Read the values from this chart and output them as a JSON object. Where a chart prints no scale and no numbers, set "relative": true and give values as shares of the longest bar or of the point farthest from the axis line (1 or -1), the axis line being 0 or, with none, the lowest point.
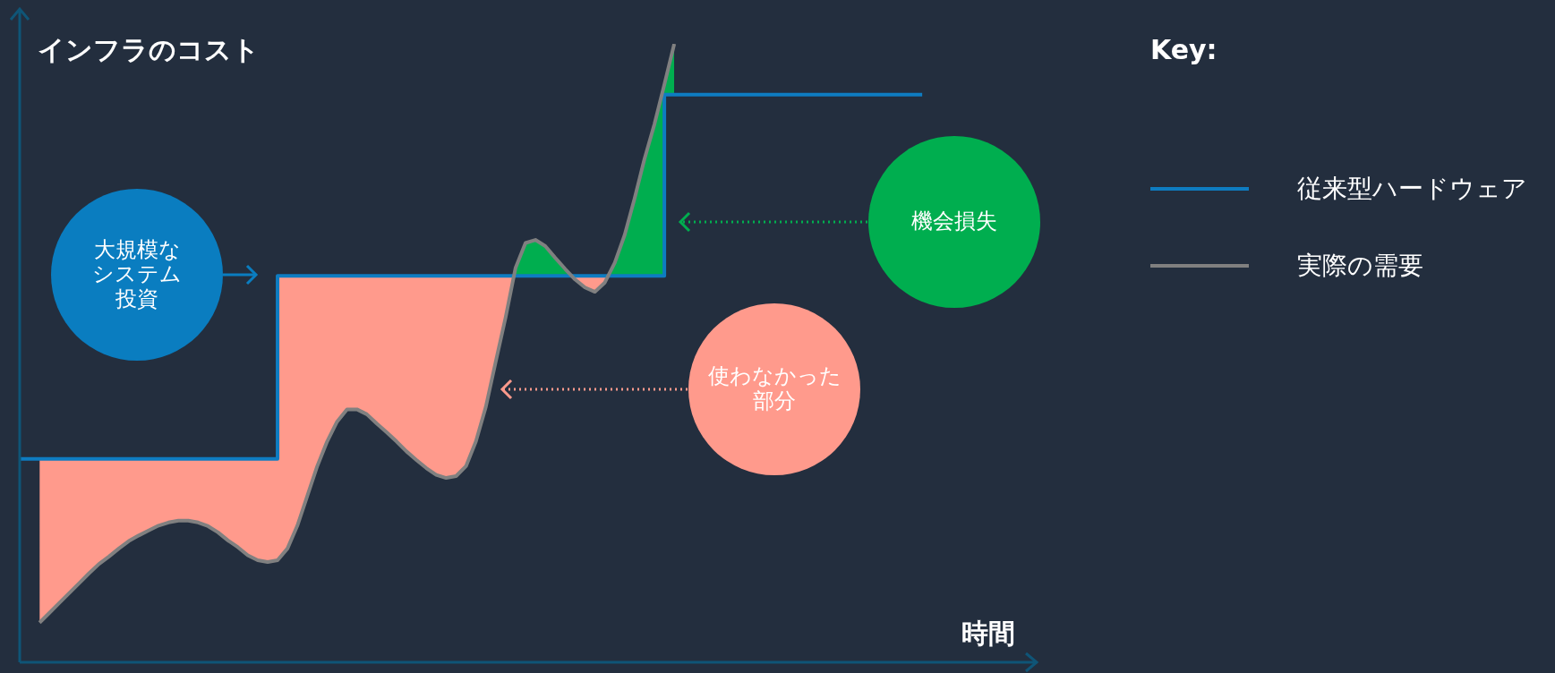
{
  "chart_data": {
    "type": "line",
    "relative": true,
    "xlabel": "時間",
    "ylabel": "インフラのコスト",
    "legend_title": "Key:",
    "legend": "right",
    "categories": [
      null,
      null,
      null,
      null,
      null,
      null,
      null,
      null,
      null,
      null,
      null,
      null,
      null,
      null,
      null,
      null,
      null,
      null,
      null,
      null,
      null,
      null,
      null,
      null,
      null,
      null,
      null,
      null,
      null,
      null,
      null,
      null,
      null,
      null,
      null,
      null,
      null,
      null,
      null,
      null,
      null,
      null,
      null,
      null,
      null,
      null,
      null,
      null,
      null,
      null,
      null,
      null,
      null,
      null,
      null,
      null,
      null,
      null,
      null,
      null,
      null,
      null,
      null,
      null,
      null,
      null,
      null,
      null,
      null,
      null,
      null,
      null,
      null,
      null,
      null,
      null,
      null,
      null,
      null,
      null,
      null,
      null,
      null,
      null,
      null,
      null,
      null,
      null,
      null,
      null,
      null,
      null,
      null,
      null,
      null,
      null,
      null,
      null,
      null,
      null,
      null,
      null,
      null
    ],
    "series": [
      {
        "name": "従来型ハードウェア",
        "type": "step",
        "color": "#0e7cc1",
        "values": [
          0.329,
          0.329,
          0.329,
          0.329,
          0.329,
          0.329,
          0.329,
          0.329,
          0.329,
          0.329,
          0.329,
          0.329,
          0.329,
          0.329,
          0.329,
          0.329,
          0.329,
          0.329,
          0.329,
          0.329,
          0.329,
          0.329,
          0.329,
          0.329,
          0.329,
          0.329,
          0.625,
          0.625,
          0.625,
          0.625,
          0.625,
          0.625,
          0.625,
          0.625,
          0.625,
          0.625,
          0.625,
          0.625,
          0.625,
          0.625,
          0.625,
          0.625,
          0.625,
          0.625,
          0.625,
          0.625,
          0.625,
          0.625,
          0.625,
          0.625,
          0.625,
          0.625,
          0.625,
          0.625,
          0.625,
          0.625,
          0.625,
          0.625,
          0.625,
          0.625,
          0.625,
          0.625,
          0.625,
          0.625,
          0.625,
          0.918,
          0.918,
          0.918,
          0.918,
          0.918,
          0.918,
          0.918,
          0.918,
          0.918,
          0.918,
          0.918,
          0.918,
          0.918,
          0.918,
          0.918,
          0.918,
          0.918,
          0.918,
          0.918,
          0.918,
          0.918,
          0.918,
          0.918,
          0.918,
          0.918,
          0.918,
          0.918,
          null,
          null,
          null,
          null,
          null,
          null,
          null,
          null,
          null,
          null,
          null
        ]
      },
      {
        "name": "実際の需要",
        "type": "line",
        "color": "#808080",
        "values": [
          null,
          null,
          0.064,
          0.08,
          0.096,
          0.112,
          0.128,
          0.144,
          0.159,
          0.171,
          0.184,
          0.196,
          0.205,
          0.213,
          0.221,
          0.226,
          0.229,
          0.229,
          0.226,
          0.22,
          0.21,
          0.197,
          0.186,
          0.173,
          0.165,
          0.162,
          0.165,
          0.184,
          0.221,
          0.269,
          0.317,
          0.357,
          0.389,
          0.409,
          0.409,
          0.401,
          0.386,
          0.372,
          0.357,
          0.341,
          0.327,
          0.314,
          0.303,
          0.298,
          0.301,
          0.317,
          0.357,
          0.413,
          0.486,
          0.558,
          0.638,
          0.678,
          0.683,
          0.673,
          0.654,
          0.636,
          0.619,
          0.606,
          0.599,
          0.614,
          0.646,
          0.691,
          0.75,
          0.814,
          0.87,
          0.934,
          1,
          null,
          null,
          null,
          null,
          null,
          null,
          null,
          null,
          null,
          null,
          null,
          null,
          null,
          null,
          null,
          null,
          null,
          null,
          null,
          null,
          null,
          null,
          null,
          null,
          null,
          null,
          null,
          null,
          null,
          null,
          null,
          null,
          null,
          null,
          null,
          null
        ]
      }
    ],
    "annotations": [
      "大規模なシステム投資",
      "機会損失",
      "使わなかった部分"
    ]
  }
}
